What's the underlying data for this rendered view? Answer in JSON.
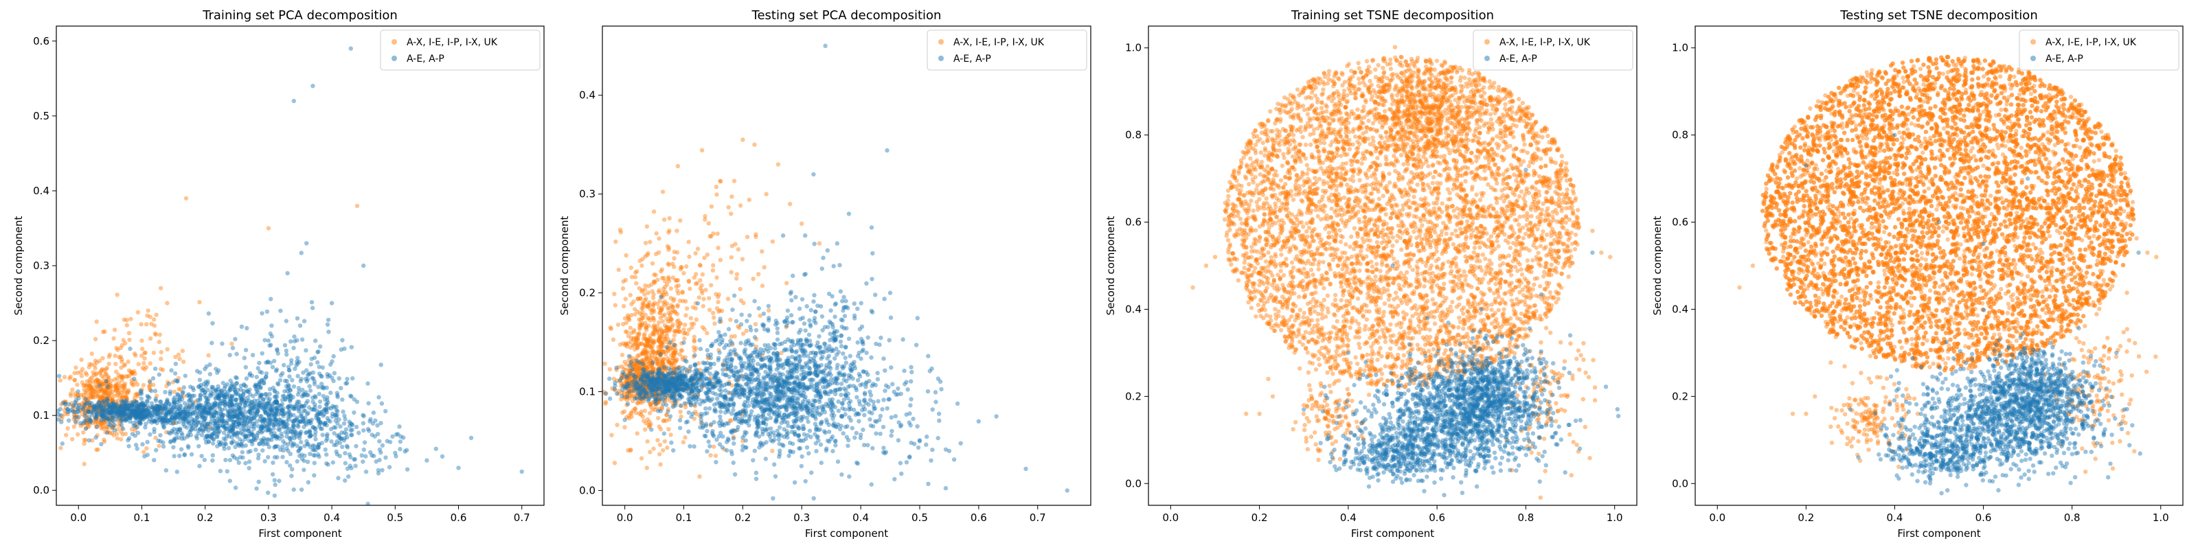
{
  "series_colors": {
    "orange": "#ff7f0e",
    "blue": "#1f77b4"
  },
  "chart_data": [
    {
      "type": "scatter",
      "title": "Training set PCA decomposition",
      "xlabel": "First component",
      "ylabel": "Second component",
      "xlim": [
        -0.035,
        0.735
      ],
      "ylim": [
        -0.02,
        0.62
      ],
      "xticks": [
        "0.0",
        "0.1",
        "0.2",
        "0.3",
        "0.4",
        "0.5",
        "0.6",
        "0.7"
      ],
      "xtick_values": [
        0.0,
        0.1,
        0.2,
        0.3,
        0.4,
        0.5,
        0.6,
        0.7
      ],
      "yticks": [
        "0.0",
        "0.1",
        "0.2",
        "0.3",
        "0.4",
        "0.5",
        "0.6"
      ],
      "ytick_values": [
        0.0,
        0.1,
        0.2,
        0.3,
        0.4,
        0.5,
        0.6
      ],
      "legend_position": "top-right",
      "series": [
        {
          "name": "A-X, I-E, I-P, I-X, UK",
          "color": "#ff7f0e",
          "points": [
            [
              0.01,
              0.105
            ],
            [
              0.02,
              0.11
            ],
            [
              0.03,
              0.115
            ],
            [
              0.04,
              0.12
            ],
            [
              0.05,
              0.13
            ],
            [
              0.06,
              0.14
            ],
            [
              0.07,
              0.15
            ],
            [
              0.08,
              0.16
            ],
            [
              0.09,
              0.18
            ],
            [
              0.1,
              0.2
            ],
            [
              0.12,
              0.22
            ],
            [
              0.14,
              0.25
            ],
            [
              0.17,
              0.39
            ],
            [
              0.3,
              0.35
            ],
            [
              0.44,
              0.38
            ],
            [
              0.02,
              0.13
            ],
            [
              0.04,
              0.16
            ],
            [
              0.06,
              0.19
            ],
            [
              0.08,
              0.21
            ],
            [
              0.11,
              0.24
            ],
            [
              0.13,
              0.27
            ],
            [
              0.05,
              0.1
            ],
            [
              0.08,
              0.1
            ],
            [
              0.1,
              0.095
            ],
            [
              0.15,
              0.09
            ],
            [
              0.2,
              0.085
            ]
          ],
          "clusters": [
            {
              "cx": 0.04,
              "cy": 0.12,
              "sx": 0.03,
              "sy": 0.025,
              "n": 500
            },
            {
              "cx": 0.1,
              "cy": 0.16,
              "sx": 0.045,
              "sy": 0.045,
              "n": 100
            }
          ]
        },
        {
          "name": "A-E, A-P",
          "color": "#1f77b4",
          "points": [
            [
              0.0,
              0.105
            ],
            [
              0.1,
              0.1
            ],
            [
              0.2,
              0.11
            ],
            [
              0.25,
              0.15
            ],
            [
              0.3,
              0.2
            ],
            [
              0.33,
              0.29
            ],
            [
              0.34,
              0.52
            ],
            [
              0.37,
              0.54
            ],
            [
              0.43,
              0.59
            ],
            [
              0.45,
              0.3
            ],
            [
              0.5,
              0.05
            ],
            [
              0.55,
              0.04
            ],
            [
              0.6,
              0.03
            ],
            [
              0.62,
              0.07
            ],
            [
              0.7,
              0.025
            ],
            [
              0.36,
              0.33
            ],
            [
              0.4,
              0.25
            ],
            [
              0.35,
              0.22
            ],
            [
              0.45,
              0.08
            ],
            [
              0.48,
              0.06
            ]
          ],
          "clusters": [
            {
              "cx": 0.08,
              "cy": 0.105,
              "sx": 0.05,
              "sy": 0.008,
              "n": 500
            },
            {
              "cx": 0.24,
              "cy": 0.1,
              "sx": 0.08,
              "sy": 0.025,
              "n": 1100
            },
            {
              "cx": 0.33,
              "cy": 0.12,
              "sx": 0.06,
              "sy": 0.055,
              "n": 400
            },
            {
              "cx": 0.42,
              "cy": 0.06,
              "sx": 0.06,
              "sy": 0.025,
              "n": 100
            }
          ]
        }
      ]
    },
    {
      "type": "scatter",
      "title": "Testing set PCA decomposition",
      "xlabel": "First component",
      "ylabel": "Second component",
      "xlim": [
        -0.038,
        0.79
      ],
      "ylim": [
        -0.015,
        0.47
      ],
      "xticks": [
        "0.0",
        "0.1",
        "0.2",
        "0.3",
        "0.4",
        "0.5",
        "0.6",
        "0.7"
      ],
      "xtick_values": [
        0.0,
        0.1,
        0.2,
        0.3,
        0.4,
        0.5,
        0.6,
        0.7
      ],
      "yticks": [
        "0.0",
        "0.1",
        "0.2",
        "0.3",
        "0.4"
      ],
      "ytick_values": [
        0.0,
        0.1,
        0.2,
        0.3,
        0.4
      ],
      "legend_position": "top-right",
      "series": [
        {
          "name": "A-X, I-E, I-P, I-X, UK",
          "color": "#ff7f0e",
          "points": [
            [
              0.2,
              0.355
            ],
            [
              0.22,
              0.35
            ],
            [
              0.26,
              0.33
            ],
            [
              0.24,
              0.3
            ],
            [
              0.18,
              0.28
            ],
            [
              0.15,
              0.26
            ],
            [
              0.12,
              0.24
            ],
            [
              0.1,
              0.22
            ],
            [
              0.28,
              0.29
            ],
            [
              0.3,
              0.27
            ],
            [
              0.33,
              0.25
            ],
            [
              0.2,
              0.05
            ],
            [
              0.25,
              0.04
            ]
          ],
          "clusters": [
            {
              "cx": 0.05,
              "cy": 0.135,
              "sx": 0.03,
              "sy": 0.04,
              "n": 700
            },
            {
              "cx": 0.12,
              "cy": 0.18,
              "sx": 0.06,
              "sy": 0.06,
              "n": 250
            },
            {
              "cx": 0.03,
              "cy": 0.11,
              "sx": 0.02,
              "sy": 0.01,
              "n": 300
            }
          ]
        },
        {
          "name": "A-E, A-P",
          "color": "#1f77b4",
          "points": [
            [
              0.34,
              0.45
            ],
            [
              0.32,
              0.32
            ],
            [
              0.36,
              0.25
            ],
            [
              0.42,
              0.24
            ],
            [
              0.5,
              0.05
            ],
            [
              0.55,
              0.04
            ],
            [
              0.6,
              0.07
            ],
            [
              0.63,
              0.075
            ],
            [
              0.68,
              0.022
            ],
            [
              0.75,
              0.0
            ],
            [
              0.45,
              0.2
            ],
            [
              0.38,
              0.28
            ]
          ],
          "clusters": [
            {
              "cx": 0.07,
              "cy": 0.107,
              "sx": 0.04,
              "sy": 0.008,
              "n": 500
            },
            {
              "cx": 0.25,
              "cy": 0.1,
              "sx": 0.08,
              "sy": 0.03,
              "n": 1300
            },
            {
              "cx": 0.33,
              "cy": 0.13,
              "sx": 0.06,
              "sy": 0.05,
              "n": 300
            },
            {
              "cx": 0.45,
              "cy": 0.07,
              "sx": 0.06,
              "sy": 0.03,
              "n": 90
            }
          ]
        }
      ]
    },
    {
      "type": "scatter",
      "title": "Training set TSNE decomposition",
      "xlabel": "First component",
      "ylabel": "Second component",
      "xlim": [
        -0.05,
        1.05
      ],
      "ylim": [
        -0.05,
        1.05
      ],
      "xticks": [
        "0.0",
        "0.2",
        "0.4",
        "0.6",
        "0.8",
        "1.0"
      ],
      "xtick_values": [
        0.0,
        0.2,
        0.4,
        0.6,
        0.8,
        1.0
      ],
      "yticks": [
        "0.0",
        "0.2",
        "0.4",
        "0.6",
        "0.8",
        "1.0"
      ],
      "ytick_values": [
        0.0,
        0.2,
        0.4,
        0.6,
        0.8,
        1.0
      ],
      "legend_position": "top-right",
      "series": [
        {
          "name": "A-X, I-E, I-P, I-X, UK",
          "color": "#ff7f0e",
          "points": [
            [
              0.05,
              0.45
            ],
            [
              0.08,
              0.5
            ],
            [
              0.1,
              0.52
            ],
            [
              0.97,
              0.53
            ],
            [
              0.99,
              0.52
            ],
            [
              0.17,
              0.16
            ],
            [
              0.2,
              0.16
            ],
            [
              0.23,
              0.2
            ],
            [
              0.3,
              0.18
            ],
            [
              0.32,
              0.18
            ],
            [
              0.92,
              0.59
            ],
            [
              0.95,
              0.58
            ],
            [
              0.22,
              0.24
            ]
          ],
          "disk": {
            "cx": 0.52,
            "cy": 0.6,
            "rx": 0.4,
            "ry": 0.38,
            "n": 5500
          },
          "clusters": [
            {
              "cx": 0.58,
              "cy": 0.85,
              "sx": 0.06,
              "sy": 0.05,
              "n": 400
            },
            {
              "cx": 0.35,
              "cy": 0.15,
              "sx": 0.04,
              "sy": 0.04,
              "n": 120
            },
            {
              "cx": 0.85,
              "cy": 0.2,
              "sx": 0.05,
              "sy": 0.07,
              "n": 120
            }
          ]
        },
        {
          "name": "A-E, A-P",
          "color": "#1f77b4",
          "points": [
            [
              0.3,
              0.17
            ],
            [
              0.5,
              0.5
            ],
            [
              0.8,
              0.72
            ],
            [
              0.9,
              0.34
            ],
            [
              0.95,
              0.53
            ],
            [
              0.4,
              0.3
            ],
            [
              0.7,
              0.4
            ]
          ],
          "clusters": [
            {
              "cx": 0.65,
              "cy": 0.15,
              "sx": 0.1,
              "sy": 0.06,
              "n": 1200
            },
            {
              "cx": 0.72,
              "cy": 0.22,
              "sx": 0.06,
              "sy": 0.05,
              "n": 500
            },
            {
              "cx": 0.5,
              "cy": 0.07,
              "sx": 0.06,
              "sy": 0.03,
              "n": 350
            }
          ]
        }
      ]
    },
    {
      "type": "scatter",
      "title": "Testing set TSNE decomposition",
      "xlabel": "First component",
      "ylabel": "Second component",
      "xlim": [
        -0.05,
        1.05
      ],
      "ylim": [
        -0.05,
        1.05
      ],
      "xticks": [
        "0.0",
        "0.2",
        "0.4",
        "0.6",
        "0.8",
        "1.0"
      ],
      "xtick_values": [
        0.0,
        0.2,
        0.4,
        0.6,
        0.8,
        1.0
      ],
      "yticks": [
        "0.0",
        "0.2",
        "0.4",
        "0.6",
        "0.8",
        "1.0"
      ],
      "ytick_values": [
        0.0,
        0.2,
        0.4,
        0.6,
        0.8,
        1.0
      ],
      "legend_position": "top-right",
      "series": [
        {
          "name": "A-X, I-E, I-P, I-X, UK",
          "color": "#ff7f0e",
          "points": [
            [
              0.05,
              0.45
            ],
            [
              0.08,
              0.5
            ],
            [
              0.97,
              0.53
            ],
            [
              0.99,
              0.52
            ],
            [
              0.17,
              0.16
            ],
            [
              0.2,
              0.16
            ],
            [
              0.22,
              0.2
            ],
            [
              0.3,
              0.18
            ],
            [
              0.92,
              0.59
            ]
          ],
          "disk": {
            "cx": 0.52,
            "cy": 0.62,
            "rx": 0.42,
            "ry": 0.36,
            "n": 9000
          },
          "clusters": [
            {
              "cx": 0.35,
              "cy": 0.15,
              "sx": 0.04,
              "sy": 0.04,
              "n": 150
            },
            {
              "cx": 0.85,
              "cy": 0.22,
              "sx": 0.05,
              "sy": 0.08,
              "n": 150
            }
          ]
        },
        {
          "name": "A-E, A-P",
          "color": "#1f77b4",
          "points": [
            [
              0.3,
              0.17
            ],
            [
              0.5,
              0.6
            ],
            [
              0.6,
              0.55
            ],
            [
              0.9,
              0.3
            ],
            [
              0.95,
              0.53
            ],
            [
              0.4,
              0.8
            ],
            [
              0.7,
              0.7
            ],
            [
              0.2,
              0.73
            ]
          ],
          "clusters": [
            {
              "cx": 0.65,
              "cy": 0.15,
              "sx": 0.1,
              "sy": 0.06,
              "n": 1100
            },
            {
              "cx": 0.72,
              "cy": 0.22,
              "sx": 0.06,
              "sy": 0.05,
              "n": 450
            },
            {
              "cx": 0.5,
              "cy": 0.07,
              "sx": 0.06,
              "sy": 0.03,
              "n": 300
            }
          ]
        }
      ]
    }
  ]
}
